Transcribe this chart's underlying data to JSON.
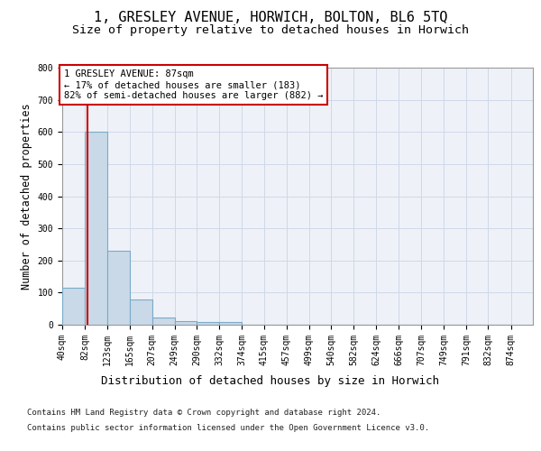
{
  "title": "1, GRESLEY AVENUE, HORWICH, BOLTON, BL6 5TQ",
  "subtitle": "Size of property relative to detached houses in Horwich",
  "xlabel": "Distribution of detached houses by size in Horwich",
  "ylabel": "Number of detached properties",
  "bin_labels": [
    "40sqm",
    "82sqm",
    "123sqm",
    "165sqm",
    "207sqm",
    "249sqm",
    "290sqm",
    "332sqm",
    "374sqm",
    "415sqm",
    "457sqm",
    "499sqm",
    "540sqm",
    "582sqm",
    "624sqm",
    "666sqm",
    "707sqm",
    "749sqm",
    "791sqm",
    "832sqm",
    "874sqm"
  ],
  "bin_edges": [
    40,
    82,
    123,
    165,
    207,
    249,
    290,
    332,
    374,
    415,
    457,
    499,
    540,
    582,
    624,
    666,
    707,
    749,
    791,
    832,
    874
  ],
  "bar_heights": [
    115,
    600,
    230,
    80,
    22,
    10,
    8,
    8,
    0,
    0,
    0,
    0,
    0,
    0,
    0,
    0,
    0,
    0,
    0,
    0
  ],
  "bar_color": "#c9d9e8",
  "bar_edge_color": "#7aaac8",
  "grid_color": "#d0d8e8",
  "background_color": "#eef2f8",
  "vline_x": 87,
  "vline_color": "#cc0000",
  "annotation_text": "1 GRESLEY AVENUE: 87sqm\n← 17% of detached houses are smaller (183)\n82% of semi-detached houses are larger (882) →",
  "annotation_box_color": "#cc0000",
  "ylim": [
    0,
    800
  ],
  "yticks": [
    0,
    100,
    200,
    300,
    400,
    500,
    600,
    700,
    800
  ],
  "footer_line1": "Contains HM Land Registry data © Crown copyright and database right 2024.",
  "footer_line2": "Contains public sector information licensed under the Open Government Licence v3.0.",
  "title_fontsize": 11,
  "subtitle_fontsize": 9.5,
  "xlabel_fontsize": 9,
  "ylabel_fontsize": 8.5,
  "tick_fontsize": 7,
  "annotation_fontsize": 7.5,
  "footer_fontsize": 6.5
}
